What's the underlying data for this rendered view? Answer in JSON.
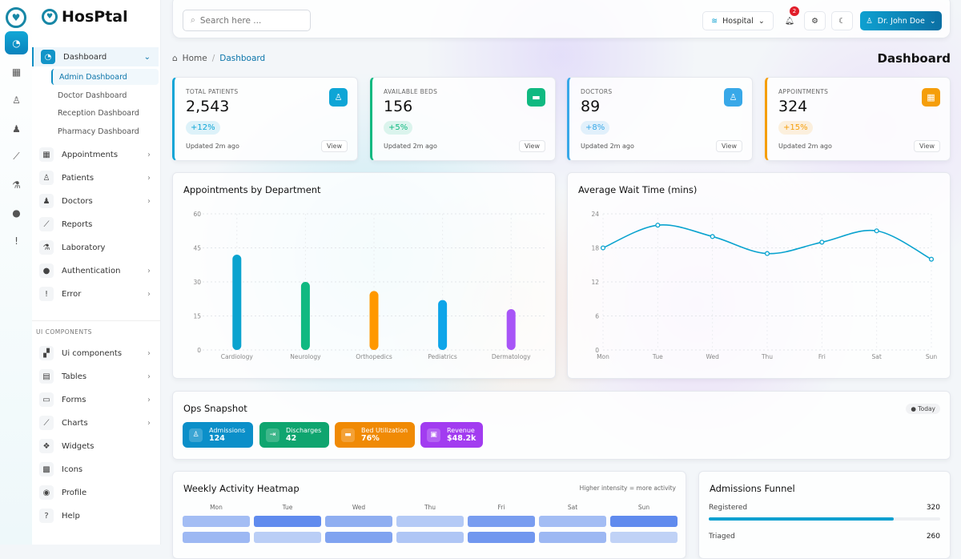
{
  "brand": {
    "name": "HosPtal"
  },
  "rail": {
    "items": [
      "dashboard",
      "appointments",
      "patients",
      "doctors",
      "reports",
      "laboratory",
      "authentication",
      "error"
    ]
  },
  "sidebar": {
    "dashboard": {
      "label": "Dashboard",
      "sub": [
        "Admin Dashboard",
        "Doctor Dashboard",
        "Reception Dashboard",
        "Pharmacy Dashboard"
      ]
    },
    "items": [
      {
        "label": "Appointments",
        "icon": "calendar-icon",
        "chevron": true
      },
      {
        "label": "Patients",
        "icon": "patient-icon",
        "chevron": true
      },
      {
        "label": "Doctors",
        "icon": "doctor-icon",
        "chevron": true
      },
      {
        "label": "Reports",
        "icon": "chart-line-icon",
        "chevron": false
      },
      {
        "label": "Laboratory",
        "icon": "flask-icon",
        "chevron": false
      },
      {
        "label": "Authentication",
        "icon": "user-icon",
        "chevron": true
      },
      {
        "label": "Error",
        "icon": "alert-icon",
        "chevron": true
      }
    ],
    "section": "UI COMPONENTS",
    "ui_items": [
      {
        "label": "Ui components",
        "icon": "components-icon",
        "chevron": true
      },
      {
        "label": "Tables",
        "icon": "table-icon",
        "chevron": true
      },
      {
        "label": "Forms",
        "icon": "form-icon",
        "chevron": true
      },
      {
        "label": "Charts",
        "icon": "chart-icon",
        "chevron": true
      },
      {
        "label": "Widgets",
        "icon": "widget-icon",
        "chevron": false
      },
      {
        "label": "Icons",
        "icon": "icons-icon",
        "chevron": false
      },
      {
        "label": "Profile",
        "icon": "profile-icon",
        "chevron": false
      },
      {
        "label": "Help",
        "icon": "help-icon",
        "chevron": false
      }
    ]
  },
  "topbar": {
    "search_placeholder": "Search here ...",
    "hospital": "Hospital",
    "notifications": "2",
    "user": "Dr. John Doe"
  },
  "breadcrumb": {
    "home": "Home",
    "current": "Dashboard"
  },
  "page_title": "Dashboard",
  "stats": [
    {
      "label": "TOTAL PATIENTS",
      "value": "2,543",
      "change": "+12%",
      "updated": "Updated 2m ago",
      "view": "View",
      "color": "#0ea5d6"
    },
    {
      "label": "AVAILABLE BEDS",
      "value": "156",
      "change": "+5%",
      "updated": "Updated 2m ago",
      "view": "View",
      "color": "#10b981"
    },
    {
      "label": "DOCTORS",
      "value": "89",
      "change": "+8%",
      "updated": "Updated 2m ago",
      "view": "View",
      "color": "#38a8e8"
    },
    {
      "label": "APPOINTMENTS",
      "value": "324",
      "change": "+15%",
      "updated": "Updated 2m ago",
      "view": "View",
      "color": "#f59e0b"
    }
  ],
  "chart_data": [
    {
      "type": "bar",
      "title": "Appointments by Department",
      "categories": [
        "Cardiology",
        "Neurology",
        "Orthopedics",
        "Pediatrics",
        "Dermatology"
      ],
      "values": [
        42,
        30,
        26,
        22,
        18
      ],
      "colors": [
        "#0aa3cf",
        "#10b981",
        "#ff9800",
        "#0ea5e9",
        "#a855f7"
      ],
      "ylim": [
        0,
        60
      ],
      "yticks": [
        0,
        15,
        30,
        45,
        60
      ],
      "grid": true
    },
    {
      "type": "line",
      "title": "Average Wait Time (mins)",
      "categories": [
        "Mon",
        "Tue",
        "Wed",
        "Thu",
        "Fri",
        "Sat",
        "Sun"
      ],
      "values": [
        18,
        22,
        20,
        17,
        19,
        21,
        16
      ],
      "color": "#0aa3cf",
      "ylim": [
        0,
        24
      ],
      "yticks": [
        0,
        6,
        12,
        18,
        24
      ],
      "grid": true
    }
  ],
  "ops": {
    "title": "Ops Snapshot",
    "badge": "Today",
    "chips": [
      {
        "label": "Admissions",
        "value": "124",
        "color": "#0b8fc9"
      },
      {
        "label": "Discharges",
        "value": "42",
        "color": "#0fa56f"
      },
      {
        "label": "Bed Utilization",
        "value": "76%",
        "color": "#f08a05"
      },
      {
        "label": "Revenue",
        "value": "$48.2k",
        "color": "#a23cf0"
      }
    ]
  },
  "heatmap": {
    "title": "Weekly Activity Heatmap",
    "note": "Higher intensity = more activity",
    "days": [
      "Mon",
      "Tue",
      "Wed",
      "Thu",
      "Fri",
      "Sat",
      "Sun"
    ],
    "rows": [
      [
        0.4,
        0.85,
        0.55,
        0.25,
        0.7,
        0.4,
        0.85
      ],
      [
        0.45,
        0.2,
        0.65,
        0.3,
        0.75,
        0.45,
        0.15
      ]
    ]
  },
  "funnel": {
    "title": "Admissions Funnel",
    "items": [
      {
        "label": "Registered",
        "value": "320",
        "fill": 0.8
      },
      {
        "label": "Triaged",
        "value": "260"
      }
    ]
  }
}
